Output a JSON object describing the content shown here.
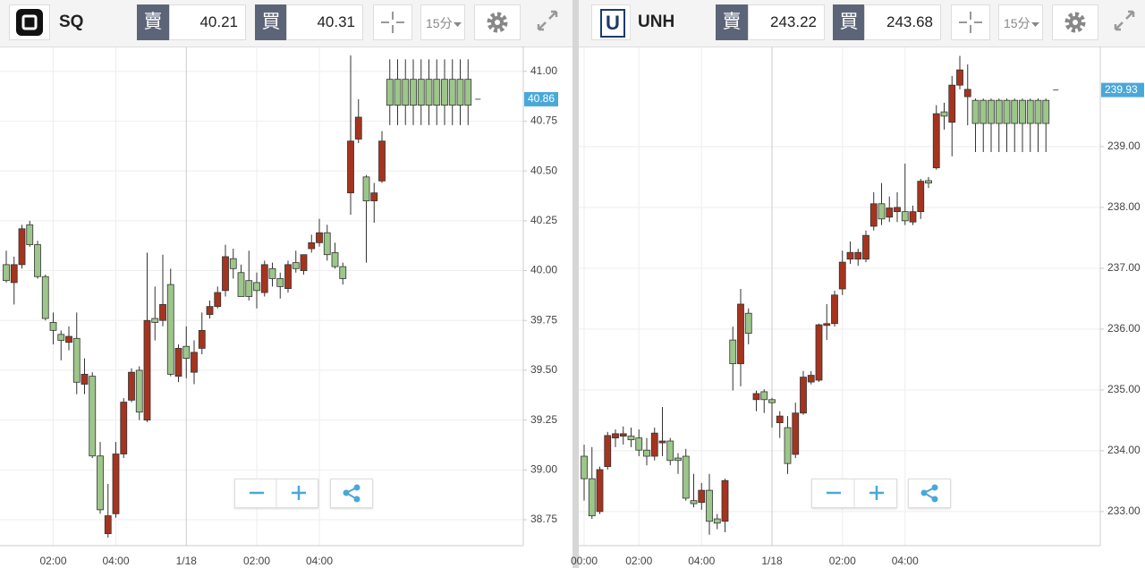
{
  "toolbars": [
    {
      "symbol": "SQ",
      "sell_label": "賣",
      "sell": 40.21,
      "buy_label": "買",
      "buy": 40.31,
      "interval": "15分"
    },
    {
      "logo": "U",
      "symbol": "UNH",
      "sell_label": "賣",
      "sell": 243.22,
      "buy_label": "買",
      "buy": 243.68,
      "interval": "15分"
    }
  ],
  "chart_data": [
    {
      "type": "candlestick",
      "categories": [
        null,
        null,
        null,
        null,
        null,
        null,
        "02:00",
        null,
        null,
        null,
        null,
        null,
        null,
        null,
        "04:00",
        null,
        null,
        null,
        null,
        null,
        null,
        null,
        null,
        "1/18",
        null,
        null,
        null,
        null,
        null,
        null,
        null,
        null,
        "02:00",
        null,
        null,
        null,
        null,
        null,
        null,
        null,
        "04:00",
        null,
        null,
        null,
        null,
        null,
        null,
        null,
        null,
        null,
        null,
        null,
        null,
        null,
        null,
        null,
        null,
        null,
        null,
        null
      ],
      "open": [
        40.03,
        39.94,
        40.03,
        40.23,
        40.13,
        39.97,
        39.74,
        39.68,
        39.64,
        39.66,
        39.43,
        39.47,
        39.07,
        38.68,
        38.78,
        39.08,
        39.35,
        39.5,
        39.25,
        39.76,
        39.75,
        39.93,
        39.47,
        39.62,
        39.49,
        39.61,
        39.78,
        39.82,
        39.9,
        40.06,
        39.99,
        39.95,
        39.94,
        39.89,
        40.01,
        39.96,
        39.91,
        40.04,
        40.0,
        40.11,
        40.14,
        40.19,
        40.09,
        40.02,
        40.39,
        40.66,
        40.47,
        40.35,
        40.45,
        40.96,
        40.96,
        40.96,
        40.96,
        40.96,
        40.96,
        40.96,
        40.96,
        40.96,
        40.96,
        40.96
      ],
      "high": [
        40.1,
        40.07,
        40.23,
        40.25,
        40.15,
        39.98,
        39.79,
        39.7,
        39.72,
        39.79,
        39.56,
        39.49,
        39.14,
        38.93,
        39.14,
        39.36,
        39.51,
        39.52,
        40.09,
        39.92,
        40.08,
        40.01,
        39.63,
        39.72,
        39.65,
        39.79,
        39.85,
        39.92,
        40.13,
        40.11,
        40.03,
        40.1,
        39.99,
        40.05,
        40.04,
        39.99,
        40.05,
        40.1,
        40.08,
        40.18,
        40.26,
        40.23,
        40.14,
        40.04,
        41.08,
        40.86,
        40.48,
        40.44,
        40.7,
        41.06,
        41.06,
        41.06,
        41.06,
        41.06,
        41.06,
        41.06,
        41.06,
        41.06,
        41.06,
        41.06
      ],
      "low": [
        39.94,
        39.83,
        40.01,
        40.12,
        39.96,
        39.75,
        39.63,
        39.55,
        39.6,
        39.38,
        39.38,
        39.06,
        38.78,
        38.66,
        38.76,
        39.06,
        39.34,
        39.25,
        39.24,
        39.65,
        39.72,
        39.47,
        39.44,
        39.46,
        39.43,
        39.58,
        39.76,
        39.81,
        39.87,
        39.96,
        39.87,
        39.85,
        39.81,
        39.87,
        39.92,
        39.86,
        39.89,
        39.99,
        39.98,
        40.09,
        40.12,
        40.05,
        40.01,
        39.93,
        40.28,
        40.64,
        40.04,
        40.24,
        40.44,
        40.73,
        40.73,
        40.73,
        40.73,
        40.73,
        40.73,
        40.73,
        40.73,
        40.73,
        40.73,
        40.73
      ],
      "close": [
        39.95,
        40.03,
        40.21,
        40.13,
        39.97,
        39.76,
        39.7,
        39.65,
        39.67,
        39.44,
        39.48,
        39.07,
        38.8,
        38.77,
        39.08,
        39.34,
        39.49,
        39.29,
        39.75,
        39.74,
        39.83,
        39.48,
        39.61,
        39.56,
        39.59,
        39.7,
        39.82,
        39.89,
        40.07,
        40.01,
        39.87,
        39.87,
        39.9,
        40.03,
        39.96,
        39.92,
        40.03,
        40.01,
        40.08,
        40.14,
        40.19,
        40.08,
        40.02,
        39.96,
        40.65,
        40.77,
        40.35,
        40.39,
        40.65,
        40.83,
        40.83,
        40.83,
        40.83,
        40.83,
        40.83,
        40.83,
        40.83,
        40.83,
        40.83,
        40.83
      ],
      "ylim": [
        38.62,
        41.12
      ],
      "yticks": [
        38.75,
        {
          "value": 39,
          "label": "39.00"
        },
        39.25,
        {
          "value": 39.5,
          "label": "39.50"
        },
        39.75,
        {
          "value": 40,
          "label": "40.00"
        },
        40.25,
        {
          "value": 40.5,
          "label": "40.50"
        },
        40.75,
        {
          "value": 41,
          "label": "41.00"
        }
      ],
      "up_color": "#a5341f",
      "down_color": "#9dc68a",
      "grid": true,
      "last_price": 40.86
    },
    {
      "type": "candlestick",
      "categories": [
        "00:00",
        null,
        null,
        null,
        null,
        null,
        null,
        "02:00",
        null,
        null,
        null,
        null,
        null,
        null,
        null,
        "04:00",
        null,
        null,
        null,
        null,
        null,
        null,
        null,
        null,
        "1/18",
        null,
        null,
        null,
        null,
        null,
        null,
        null,
        null,
        "02:00",
        null,
        null,
        null,
        null,
        null,
        null,
        null,
        "04:00",
        null,
        null,
        null,
        null,
        null,
        null,
        null,
        null,
        null,
        null,
        null,
        null,
        null,
        null,
        null,
        null,
        null,
        null
      ],
      "open": [
        233.91,
        233.54,
        233.0,
        233.74,
        234.21,
        234.24,
        234.24,
        234.21,
        234.01,
        233.91,
        234.13,
        234.16,
        233.88,
        233.91,
        233.18,
        233.15,
        233.35,
        232.88,
        232.84,
        235.82,
        235.43,
        236.26,
        234.84,
        234.97,
        234.84,
        234.46,
        234.38,
        233.94,
        234.62,
        235.13,
        235.16,
        236.06,
        236.09,
        236.66,
        237.15,
        237.15,
        237.15,
        237.69,
        238.06,
        237.84,
        237.93,
        237.93,
        237.76,
        237.93,
        238.44,
        238.65,
        239.57,
        239.4,
        240.01,
        239.82,
        239.76,
        239.76,
        239.76,
        239.76,
        239.76,
        239.76,
        239.76,
        239.76,
        239.76,
        239.76
      ],
      "high": [
        234.1,
        234.06,
        233.74,
        234.31,
        234.35,
        234.4,
        234.38,
        234.35,
        234.21,
        234.38,
        234.72,
        234.21,
        233.96,
        234.03,
        233.62,
        233.47,
        233.62,
        232.96,
        233.54,
        236.04,
        236.66,
        236.34,
        234.99,
        235.01,
        234.87,
        234.65,
        234.57,
        234.79,
        235.31,
        235.31,
        236.09,
        236.41,
        236.63,
        237.29,
        237.44,
        237.32,
        237.62,
        238.25,
        238.4,
        238.18,
        238.25,
        238.72,
        238.03,
        238.47,
        238.5,
        239.68,
        239.72,
        240.16,
        240.49,
        240.35,
        239.79,
        239.79,
        239.79,
        239.79,
        239.79,
        239.79,
        239.79,
        239.79,
        239.79,
        239.79
      ],
      "low": [
        233.18,
        232.88,
        232.96,
        233.69,
        234.06,
        234.1,
        234.06,
        233.91,
        233.76,
        233.84,
        233.91,
        233.76,
        233.62,
        233.18,
        233.07,
        233.03,
        232.62,
        232.71,
        232.66,
        234.99,
        235.06,
        235.75,
        234.65,
        234.62,
        234.38,
        234.21,
        233.62,
        233.88,
        234.59,
        235.09,
        235.13,
        235.82,
        236.04,
        236.56,
        237.07,
        237.04,
        237.1,
        237.62,
        237.71,
        237.76,
        237.76,
        237.71,
        237.71,
        237.81,
        238.32,
        238.62,
        239.28,
        238.84,
        239.94,
        239.35,
        238.91,
        238.91,
        238.91,
        238.91,
        238.91,
        238.91,
        238.91,
        238.91,
        238.91,
        238.91
      ],
      "close": [
        233.54,
        232.93,
        233.69,
        234.25,
        234.28,
        234.28,
        234.18,
        234.01,
        233.91,
        234.29,
        234.16,
        233.84,
        233.84,
        233.22,
        233.13,
        233.35,
        232.84,
        232.81,
        233.51,
        235.43,
        236.41,
        235.93,
        234.94,
        234.84,
        234.79,
        234.57,
        233.79,
        234.62,
        235.21,
        235.24,
        236.07,
        236.09,
        236.56,
        237.1,
        237.26,
        237.26,
        237.54,
        238.06,
        237.81,
        237.99,
        238.0,
        237.78,
        237.93,
        238.43,
        238.4,
        239.54,
        239.5,
        240.01,
        240.26,
        239.94,
        239.38,
        239.38,
        239.38,
        239.38,
        239.38,
        239.38,
        239.38,
        239.38,
        239.38,
        239.38
      ],
      "ylim": [
        232.44,
        240.63
      ],
      "yticks": [
        {
          "value": 233,
          "label": "233.00"
        },
        {
          "value": 234,
          "label": "234.00"
        },
        {
          "value": 235,
          "label": "235.00"
        },
        {
          "value": 236,
          "label": "236.00"
        },
        {
          "value": 237,
          "label": "237.00"
        },
        {
          "value": 238,
          "label": "238.00"
        },
        {
          "value": 239,
          "label": "239.00"
        }
      ],
      "up_color": "#a5341f",
      "down_color": "#9dc68a",
      "grid": true,
      "last_price": 239.93
    }
  ]
}
